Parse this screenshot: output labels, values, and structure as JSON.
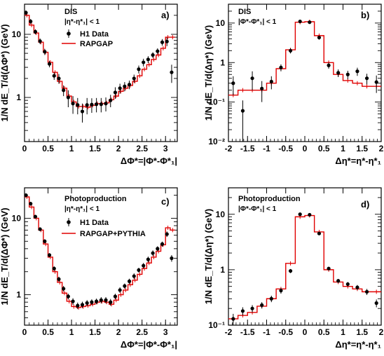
{
  "chart_data": [
    {
      "type": "scatter",
      "panel_label": "a)",
      "annotations": [
        "DIS",
        "|η*-η*₁| < 1"
      ],
      "xlabel": "ΔΦ*=|Φ*-Φ*₁|",
      "ylabel": "1/N dE_T/d(ΔΦ*) (GeV)",
      "xlim": [
        0,
        3.25
      ],
      "ylim": [
        0.2,
        30
      ],
      "yscale": "log",
      "x_ticks": [
        0,
        0.5,
        1,
        1.5,
        2,
        2.5,
        3
      ],
      "x_tick_labels": [
        "0",
        "0.5",
        "1",
        "1.5",
        "2",
        "2.5",
        "3"
      ],
      "y_ticks": [
        1,
        10
      ],
      "y_tick_labels": [
        "1",
        "10"
      ],
      "legend_position": "top-left",
      "series": [
        {
          "name": "H1 Data",
          "kind": "points",
          "color": "#000000",
          "x": [
            0.03,
            0.13,
            0.23,
            0.33,
            0.43,
            0.53,
            0.63,
            0.73,
            0.83,
            0.93,
            1.03,
            1.13,
            1.23,
            1.33,
            1.43,
            1.53,
            1.63,
            1.73,
            1.83,
            1.93,
            2.03,
            2.13,
            2.23,
            2.33,
            2.43,
            2.53,
            2.63,
            2.73,
            2.83,
            2.93,
            3.03,
            3.13
          ],
          "y": [
            22,
            16,
            11,
            7.8,
            5.3,
            3.4,
            2.2,
            2.0,
            1.3,
            1.0,
            0.8,
            0.76,
            0.6,
            0.76,
            0.77,
            0.78,
            0.78,
            0.8,
            0.9,
            1.2,
            1.4,
            1.5,
            1.6,
            2.0,
            2.8,
            3.6,
            4.0,
            4.7,
            5.4,
            7.5,
            7.7,
            2.5
          ],
          "yerr": [
            2,
            1.5,
            1,
            0.8,
            0.6,
            0.4,
            0.3,
            0.35,
            0.25,
            0.3,
            0.25,
            0.22,
            0.2,
            0.22,
            0.2,
            0.2,
            0.2,
            0.2,
            0.2,
            0.25,
            0.25,
            0.25,
            0.25,
            0.3,
            0.4,
            0.5,
            0.5,
            0.5,
            0.6,
            0.9,
            1.2,
            0.8
          ]
        },
        {
          "name": "RAPGAP",
          "kind": "histogram",
          "color": "#e00000",
          "edges": [
            0,
            0.1,
            0.2,
            0.3,
            0.4,
            0.5,
            0.6,
            0.7,
            0.8,
            0.9,
            1.0,
            1.1,
            1.2,
            1.3,
            1.4,
            1.5,
            1.6,
            1.7,
            1.8,
            1.9,
            2.0,
            2.1,
            2.2,
            2.3,
            2.4,
            2.5,
            2.6,
            2.7,
            2.8,
            2.9,
            3.0,
            3.1,
            3.2
          ],
          "values": [
            20,
            14,
            10.5,
            7.5,
            5.2,
            3.6,
            2.5,
            1.8,
            1.4,
            1.05,
            0.85,
            0.72,
            0.72,
            0.7,
            0.75,
            0.8,
            0.8,
            0.82,
            0.92,
            1.05,
            1.25,
            1.4,
            1.55,
            1.8,
            2.2,
            2.8,
            3.3,
            4.0,
            4.7,
            6.0,
            9.0,
            9.0
          ]
        }
      ]
    },
    {
      "type": "scatter",
      "panel_label": "b)",
      "annotations": [
        "DIS",
        "|Φ*-Φ*₁| < 1"
      ],
      "xlabel": "Δη*=η*-η*₁",
      "ylabel": "1/N dE_T/d(Δη*) (GeV)",
      "xlim": [
        -2,
        2
      ],
      "ylim": [
        0.01,
        30
      ],
      "yscale": "log",
      "x_ticks": [
        -2,
        -1.5,
        -1,
        -0.5,
        0,
        0.5,
        1,
        1.5,
        2
      ],
      "x_tick_labels": [
        "-2",
        "-1.5",
        "-1",
        "-0.5",
        "0",
        "0.5",
        "1",
        "1.5",
        "2"
      ],
      "y_ticks": [
        0.01,
        0.1,
        1,
        10
      ],
      "y_tick_labels": [
        "10⁻²",
        "10⁻¹",
        "1",
        "10"
      ],
      "series": [
        {
          "name": "",
          "kind": "points",
          "color": "#000000",
          "x": [
            -1.875,
            -1.625,
            -1.375,
            -1.125,
            -0.875,
            -0.625,
            -0.375,
            -0.125,
            0.125,
            0.375,
            0.625,
            0.875,
            1.125,
            1.375,
            1.625,
            1.875
          ],
          "y": [
            0.3,
            0.06,
            0.4,
            0.22,
            0.33,
            0.75,
            2.0,
            11.0,
            10.5,
            4.3,
            0.85,
            0.55,
            0.5,
            0.6,
            0.4,
            0.32
          ],
          "yerr": [
            0.15,
            0.05,
            0.2,
            0.12,
            0.12,
            0.15,
            0.3,
            1.0,
            1.0,
            0.5,
            0.15,
            0.12,
            0.12,
            0.14,
            0.12,
            0.15
          ]
        },
        {
          "name": "",
          "kind": "histogram",
          "color": "#e00000",
          "edges": [
            -2,
            -1.75,
            -1.5,
            -1.25,
            -1,
            -0.75,
            -0.5,
            -0.25,
            0,
            0.25,
            0.5,
            0.75,
            1,
            1.25,
            1.5,
            1.75,
            2
          ],
          "values": [
            0.15,
            0.2,
            0.2,
            0.2,
            0.3,
            0.7,
            2.1,
            10.5,
            10.8,
            4.8,
            1.0,
            0.5,
            0.35,
            0.3,
            0.25,
            0.25
          ]
        }
      ]
    },
    {
      "type": "scatter",
      "panel_label": "c)",
      "annotations": [
        "Photoproduction",
        "|η*-η*₁| < 1"
      ],
      "xlabel": "ΔΦ*=|Φ*-Φ*₁|",
      "ylabel": "1/N dE_T/d(ΔΦ*) (GeV)",
      "xlim": [
        0,
        3.25
      ],
      "ylim": [
        0.4,
        25
      ],
      "yscale": "log",
      "x_ticks": [
        0,
        0.5,
        1,
        1.5,
        2,
        2.5,
        3
      ],
      "x_tick_labels": [
        "0",
        "0.5",
        "1",
        "1.5",
        "2",
        "2.5",
        "3"
      ],
      "y_ticks": [
        1,
        10
      ],
      "y_tick_labels": [
        "1",
        "10"
      ],
      "legend_position": "top-left",
      "series": [
        {
          "name": "H1 Data",
          "kind": "points",
          "color": "#000000",
          "x": [
            0.03,
            0.13,
            0.23,
            0.33,
            0.43,
            0.53,
            0.63,
            0.73,
            0.83,
            0.93,
            1.03,
            1.13,
            1.23,
            1.33,
            1.43,
            1.53,
            1.63,
            1.73,
            1.83,
            1.93,
            2.03,
            2.13,
            2.23,
            2.33,
            2.43,
            2.53,
            2.63,
            2.73,
            2.83,
            2.93,
            3.03,
            3.13
          ],
          "y": [
            20,
            15.5,
            10.5,
            7.2,
            5.0,
            3.3,
            2.2,
            1.6,
            1.2,
            0.95,
            0.82,
            0.72,
            0.74,
            0.78,
            0.8,
            0.82,
            0.85,
            0.85,
            0.8,
            0.95,
            1.15,
            1.3,
            1.5,
            1.75,
            2.1,
            2.4,
            2.9,
            3.5,
            4.0,
            4.6,
            6.2,
            3.0
          ],
          "yerr": [
            1.2,
            0.9,
            0.6,
            0.4,
            0.3,
            0.2,
            0.15,
            0.12,
            0.1,
            0.08,
            0.08,
            0.07,
            0.07,
            0.07,
            0.07,
            0.07,
            0.08,
            0.08,
            0.08,
            0.08,
            0.1,
            0.1,
            0.12,
            0.15,
            0.15,
            0.2,
            0.25,
            0.3,
            0.3,
            0.35,
            0.5,
            0.3
          ]
        },
        {
          "name": "RAPGAP+PYTHIA",
          "kind": "histogram",
          "color": "#e00000",
          "edges": [
            0,
            0.1,
            0.2,
            0.3,
            0.4,
            0.5,
            0.6,
            0.7,
            0.8,
            0.9,
            1.0,
            1.1,
            1.2,
            1.3,
            1.4,
            1.5,
            1.6,
            1.7,
            1.8,
            1.9,
            2.0,
            2.1,
            2.2,
            2.3,
            2.4,
            2.5,
            2.6,
            2.7,
            2.8,
            2.9,
            3.0,
            3.1,
            3.2
          ],
          "values": [
            19,
            14,
            10,
            7.0,
            4.6,
            3.1,
            2.0,
            1.45,
            1.05,
            0.82,
            0.7,
            0.68,
            0.7,
            0.72,
            0.75,
            0.8,
            0.82,
            0.8,
            0.75,
            0.85,
            1.0,
            1.15,
            1.35,
            1.55,
            1.85,
            2.2,
            2.6,
            3.1,
            3.7,
            4.5,
            7.5,
            7.0
          ]
        }
      ]
    },
    {
      "type": "scatter",
      "panel_label": "d)",
      "annotations": [
        "Photoproduction",
        "|Φ*-Φ*₁| < 1"
      ],
      "xlabel": "Δη*=η*-η*₁",
      "ylabel": "1/N dE_T/d(Δη*) (GeV)",
      "xlim": [
        -2,
        2
      ],
      "ylim": [
        0.1,
        30
      ],
      "yscale": "log",
      "x_ticks": [
        -2,
        -1.5,
        -1,
        -0.5,
        0,
        0.5,
        1,
        1.5,
        2
      ],
      "x_tick_labels": [
        "-2",
        "-1.5",
        "-1",
        "-0.5",
        "0",
        "0.5",
        "1",
        "1.5",
        "2"
      ],
      "y_ticks": [
        0.1,
        1,
        10
      ],
      "y_tick_labels": [
        "10⁻¹",
        "1",
        "10"
      ],
      "series": [
        {
          "name": "",
          "kind": "points",
          "color": "#000000",
          "x": [
            -1.875,
            -1.625,
            -1.375,
            -1.125,
            -0.875,
            -0.625,
            -0.375,
            -0.125,
            0.125,
            0.375,
            0.625,
            0.875,
            1.125,
            1.375,
            1.625,
            1.875
          ],
          "y": [
            0.13,
            0.18,
            0.2,
            0.23,
            0.3,
            0.42,
            0.95,
            10.0,
            9.8,
            4.5,
            1.05,
            0.63,
            0.55,
            0.48,
            0.4,
            0.25
          ],
          "yerr": [
            0.03,
            0.03,
            0.03,
            0.03,
            0.04,
            0.05,
            0.08,
            0.4,
            0.4,
            0.2,
            0.08,
            0.05,
            0.05,
            0.05,
            0.05,
            0.04
          ]
        },
        {
          "name": "",
          "kind": "histogram",
          "color": "#e00000",
          "edges": [
            -2,
            -1.75,
            -1.5,
            -1.25,
            -1,
            -0.75,
            -0.5,
            -0.25,
            0,
            0.25,
            0.5,
            0.75,
            1,
            1.25,
            1.5,
            1.75,
            2
          ],
          "values": [
            0.13,
            0.15,
            0.17,
            0.22,
            0.3,
            0.45,
            1.3,
            9.0,
            9.5,
            4.8,
            1.0,
            0.6,
            0.5,
            0.45,
            0.4,
            0.4
          ]
        }
      ]
    }
  ]
}
